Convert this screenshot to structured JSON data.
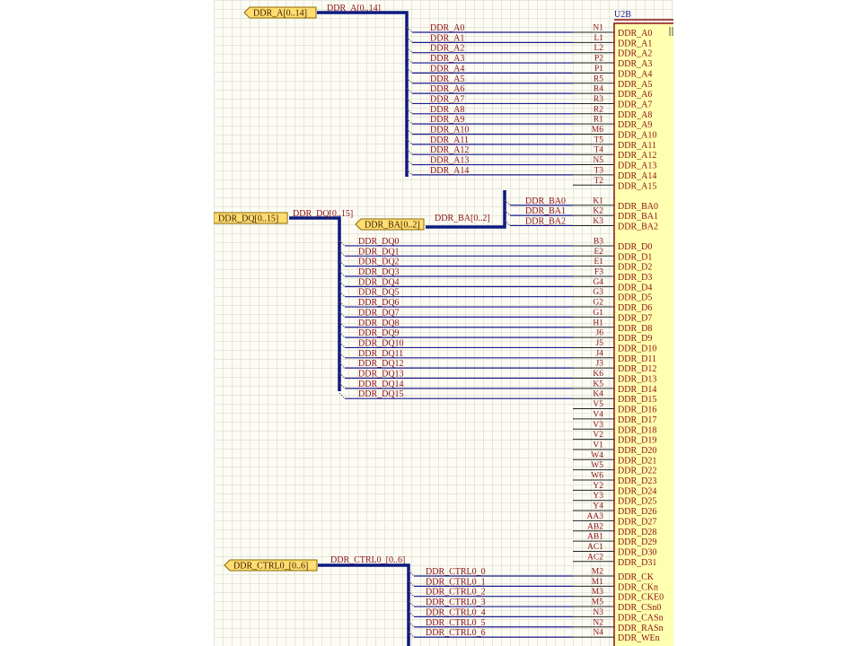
{
  "component": {
    "designator": "U2B",
    "accent": "#8b1010",
    "body_color": "#ffffb0",
    "pins": [
      {
        "number": "N1",
        "name": "DDR_A0"
      },
      {
        "number": "L1",
        "name": "DDR_A1"
      },
      {
        "number": "L2",
        "name": "DDR_A2"
      },
      {
        "number": "P2",
        "name": "DDR_A3"
      },
      {
        "number": "P1",
        "name": "DDR_A4"
      },
      {
        "number": "R5",
        "name": "DDR_A5"
      },
      {
        "number": "R4",
        "name": "DDR_A6"
      },
      {
        "number": "R3",
        "name": "DDR_A7"
      },
      {
        "number": "R2",
        "name": "DDR_A8"
      },
      {
        "number": "R1",
        "name": "DDR_A9"
      },
      {
        "number": "M6",
        "name": "DDR_A10"
      },
      {
        "number": "T5",
        "name": "DDR_A11"
      },
      {
        "number": "T4",
        "name": "DDR_A12"
      },
      {
        "number": "N5",
        "name": "DDR_A13"
      },
      {
        "number": "T3",
        "name": "DDR_A14"
      },
      {
        "number": "T2",
        "name": "DDR_A15"
      },
      {
        "number": "K1",
        "name": "DDR_BA0"
      },
      {
        "number": "K2",
        "name": "DDR_BA1"
      },
      {
        "number": "K3",
        "name": "DDR_BA2"
      },
      {
        "number": "B3",
        "name": "DDR_D0"
      },
      {
        "number": "E2",
        "name": "DDR_D1"
      },
      {
        "number": "E1",
        "name": "DDR_D2"
      },
      {
        "number": "F3",
        "name": "DDR_D3"
      },
      {
        "number": "G4",
        "name": "DDR_D4"
      },
      {
        "number": "G3",
        "name": "DDR_D5"
      },
      {
        "number": "G2",
        "name": "DDR_D6"
      },
      {
        "number": "G1",
        "name": "DDR_D7"
      },
      {
        "number": "H1",
        "name": "DDR_D8"
      },
      {
        "number": "J6",
        "name": "DDR_D9"
      },
      {
        "number": "J5",
        "name": "DDR_D10"
      },
      {
        "number": "J4",
        "name": "DDR_D11"
      },
      {
        "number": "J3",
        "name": "DDR_D12"
      },
      {
        "number": "K6",
        "name": "DDR_D13"
      },
      {
        "number": "K5",
        "name": "DDR_D14"
      },
      {
        "number": "K4",
        "name": "DDR_D15"
      },
      {
        "number": "V5",
        "name": "DDR_D16"
      },
      {
        "number": "V4",
        "name": "DDR_D17"
      },
      {
        "number": "V3",
        "name": "DDR_D18"
      },
      {
        "number": "V2",
        "name": "DDR_D19"
      },
      {
        "number": "V1",
        "name": "DDR_D20"
      },
      {
        "number": "W4",
        "name": "DDR_D21"
      },
      {
        "number": "W5",
        "name": "DDR_D22"
      },
      {
        "number": "W6",
        "name": "DDR_D23"
      },
      {
        "number": "Y2",
        "name": "DDR_D24"
      },
      {
        "number": "Y3",
        "name": "DDR_D25"
      },
      {
        "number": "Y4",
        "name": "DDR_D26"
      },
      {
        "number": "AA3",
        "name": "DDR_D27"
      },
      {
        "number": "AB2",
        "name": "DDR_D28"
      },
      {
        "number": "AB1",
        "name": "DDR_D29"
      },
      {
        "number": "AC1",
        "name": "DDR_D30"
      },
      {
        "number": "AC2",
        "name": "DDR_D31"
      },
      {
        "number": "M2",
        "name": "DDR_CK"
      },
      {
        "number": "M1",
        "name": "DDR_CKn"
      },
      {
        "number": "M3",
        "name": "DDR_CKE0"
      },
      {
        "number": "M5",
        "name": "DDR_CSn0"
      },
      {
        "number": "N3",
        "name": "DDR_CASn"
      },
      {
        "number": "N2",
        "name": "DDR_RASn"
      },
      {
        "number": "N4",
        "name": "DDR_WEn"
      }
    ]
  },
  "ports": [
    {
      "label": "DDR_A[0..14]"
    },
    {
      "label": "DDR_DQ[0..15]"
    },
    {
      "label": "DDR_BA[0..2]"
    },
    {
      "label": "DDR_CTRL0_[0..6]"
    }
  ],
  "bus_labels": {
    "a": "DDR_A[0..14]",
    "dq": "DDR_DQ[0..15]",
    "ba": "DDR_BA[0..2]",
    "ctrl": "DDR_CTRL0_[0..6]"
  },
  "net_labels": {
    "a": [
      "DDR_A0",
      "DDR_A1",
      "DDR_A2",
      "DDR_A3",
      "DDR_A4",
      "DDR_A5",
      "DDR_A6",
      "DDR_A7",
      "DDR_A8",
      "DDR_A9",
      "DDR_A10",
      "DDR_A11",
      "DDR_A12",
      "DDR_A13",
      "DDR_A14"
    ],
    "ba": [
      "DDR_BA0",
      "DDR_BA1",
      "DDR_BA2"
    ],
    "dq": [
      "DDR_DQ0",
      "DDR_DQ1",
      "DDR_DQ2",
      "DDR_DQ3",
      "DDR_DQ4",
      "DDR_DQ5",
      "DDR_DQ6",
      "DDR_DQ7",
      "DDR_DQ8",
      "DDR_DQ9",
      "DDR_DQ10",
      "DDR_DQ11",
      "DDR_DQ12",
      "DDR_DQ13",
      "DDR_DQ14",
      "DDR_DQ15"
    ],
    "ctrl": [
      "DDR_CTRL0_0",
      "DDR_CTRL0_1",
      "DDR_CTRL0_2",
      "DDR_CTRL0_3",
      "DDR_CTRL0_4",
      "DDR_CTRL0_5",
      "DDR_CTRL0_6"
    ]
  },
  "colors": {
    "wire": "#1a1a8c",
    "bus": "#0d1a80",
    "text_red": "#8b1010",
    "port_fill": "#ffdd70",
    "port_border": "#8b6a00"
  }
}
